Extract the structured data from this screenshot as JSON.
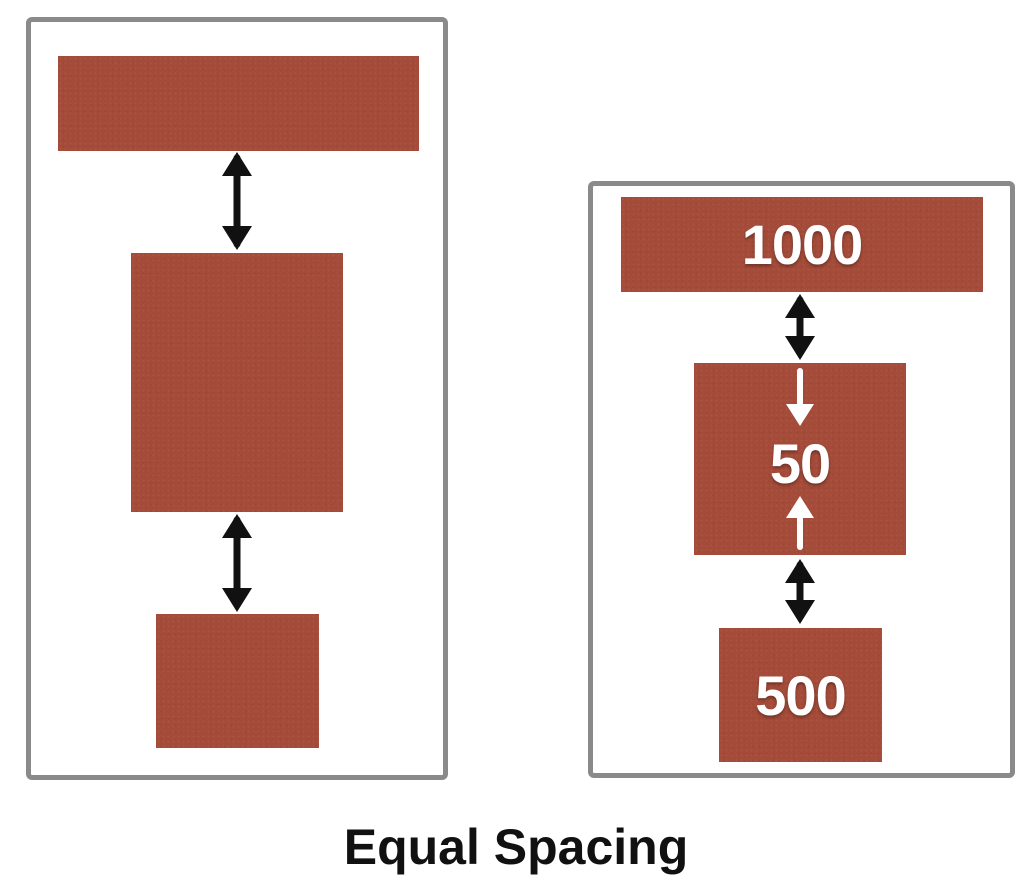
{
  "left_panel": {
    "blocks": [
      {
        "label": ""
      },
      {
        "label": ""
      },
      {
        "label": ""
      }
    ]
  },
  "right_panel": {
    "blocks": [
      {
        "label": "1000"
      },
      {
        "label": "50"
      },
      {
        "label": "500"
      }
    ]
  },
  "caption": "Equal Spacing",
  "colors": {
    "block_fill": "#a54b39",
    "frame_border": "#8a8a8a",
    "arrow_dark": "#111111",
    "arrow_light": "#ffffff"
  },
  "icons": [
    "double-headed-arrow-icon",
    "down-arrow-icon",
    "up-arrow-icon"
  ]
}
